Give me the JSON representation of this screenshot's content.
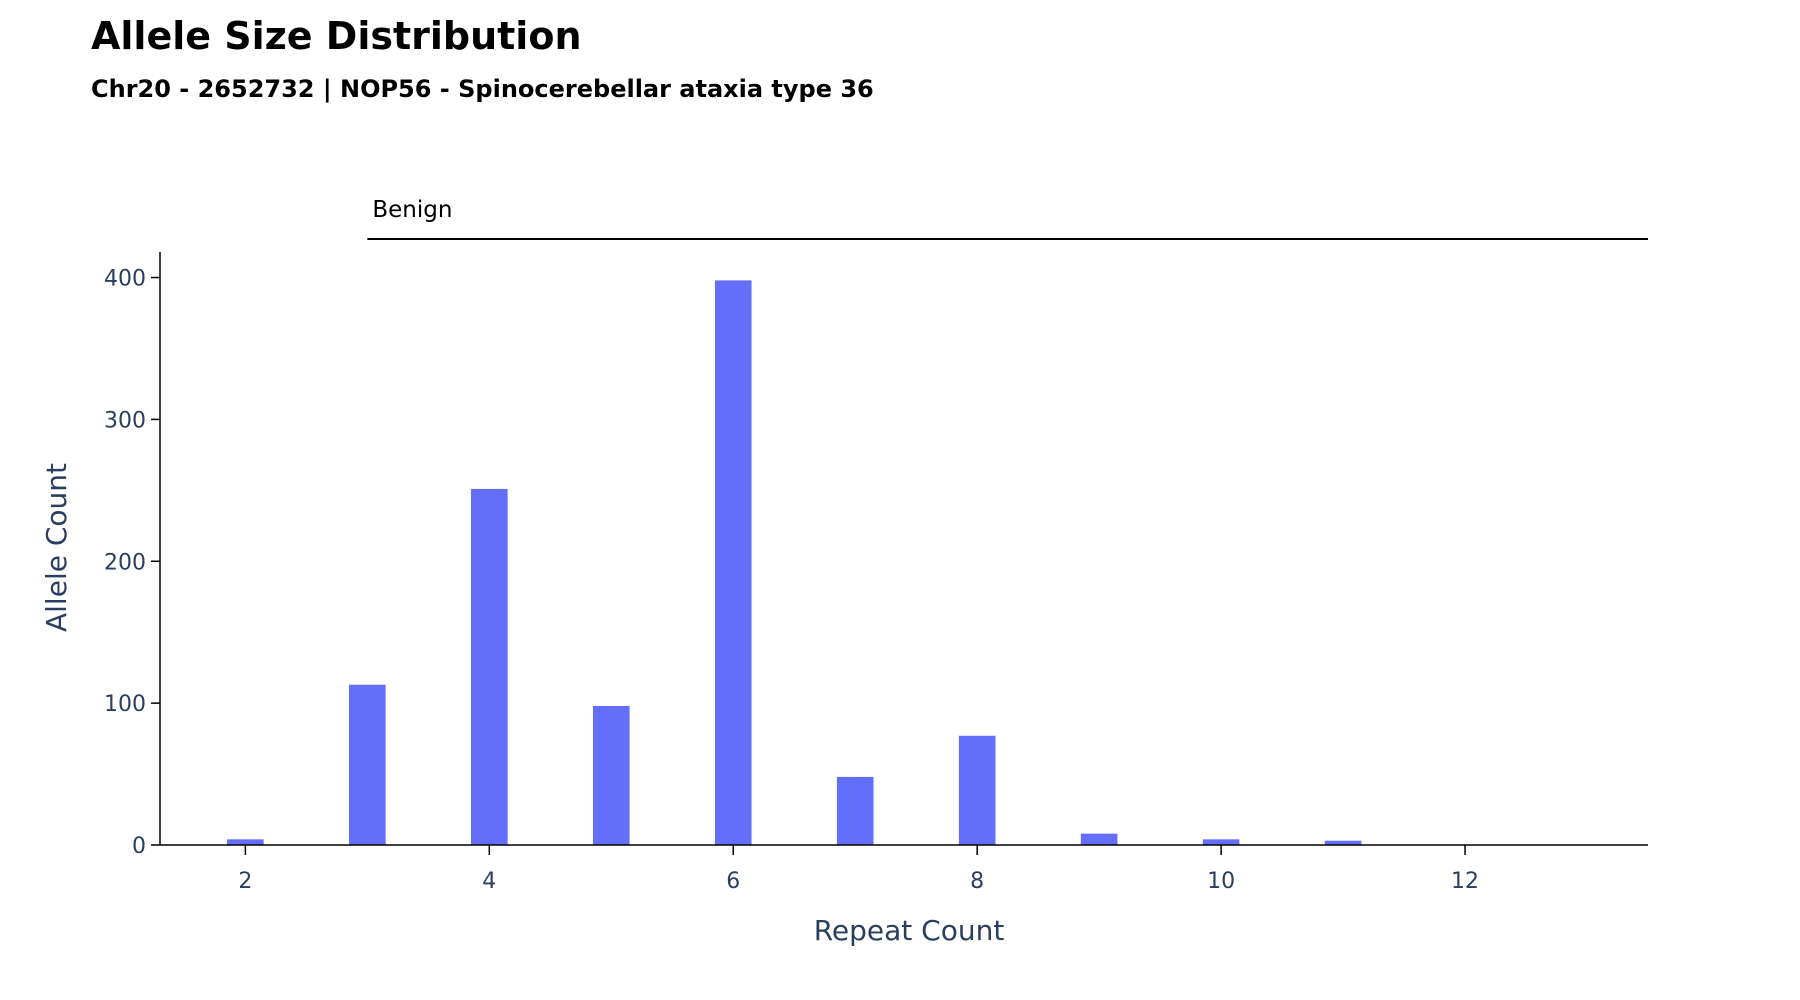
{
  "chart_data": {
    "type": "bar",
    "title": "Allele Size Distribution",
    "subtitle": "Chr20 - 2652732 | NOP56 - Spinocerebellar ataxia type 36",
    "xlabel": "Repeat Count",
    "ylabel": "Allele Count",
    "x": [
      2,
      3,
      4,
      5,
      6,
      7,
      8,
      9,
      10,
      11
    ],
    "values": [
      4,
      113,
      251,
      98,
      398,
      48,
      77,
      8,
      4,
      3
    ],
    "xlim": [
      1.3,
      13.5
    ],
    "ylim": [
      0,
      418
    ],
    "xticks": [
      2,
      4,
      6,
      8,
      10,
      12
    ],
    "yticks": [
      0,
      100,
      200,
      300,
      400
    ],
    "bar_color": "#636efa",
    "grid": false,
    "annotation": {
      "label": "Benign",
      "x_start": 3,
      "x_end": 13.5
    }
  }
}
